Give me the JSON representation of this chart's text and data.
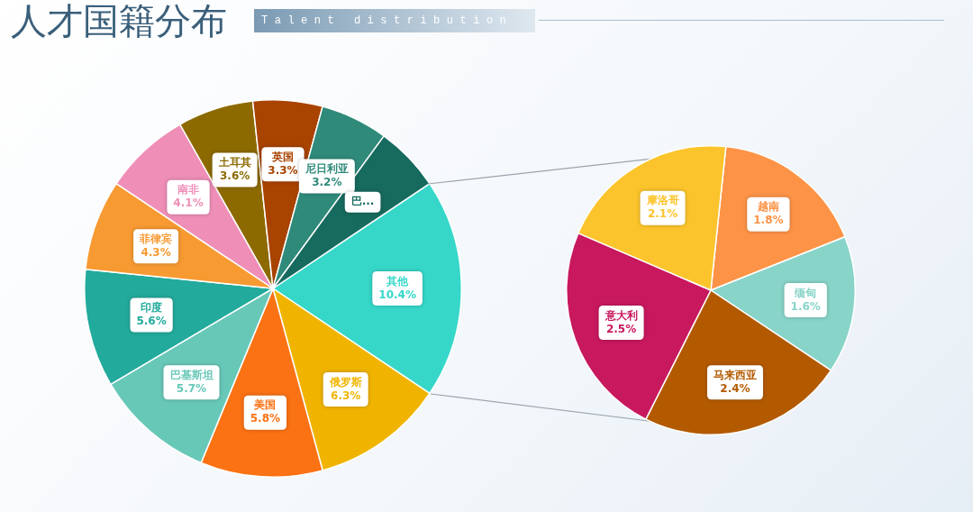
{
  "chart_data": [
    {
      "type": "pie",
      "title": "人才国籍分布",
      "subtitle": "Talent distribution",
      "categories": [
        "其他",
        "俄罗斯",
        "美国",
        "巴基斯坦",
        "印度",
        "菲律宾",
        "南非",
        "土耳其",
        "英国",
        "尼日利亚",
        "巴..."
      ],
      "values": [
        10.4,
        6.3,
        5.8,
        5.7,
        5.6,
        4.3,
        4.1,
        3.6,
        3.3,
        3.2,
        3.1
      ],
      "value_labels": [
        "10.4%",
        "6.3%",
        "5.8%",
        "5.7%",
        "5.6%",
        "4.3%",
        "4.1%",
        "3.6%",
        "3.3%",
        "3.2%",
        null
      ],
      "colors": [
        "#36d7c9",
        "#f0b400",
        "#fa7214",
        "#68c8b8",
        "#22aa9c",
        "#f79a32",
        "#ef8fb8",
        "#8c6a00",
        "#a84300",
        "#2f8a7a",
        "#176a5e"
      ],
      "legend": false
    },
    {
      "type": "pie",
      "categories": [
        "越南",
        "缅甸",
        "马来西亚",
        "意大利",
        "摩洛哥"
      ],
      "values": [
        1.8,
        1.6,
        2.4,
        2.5,
        2.1
      ],
      "value_labels": [
        "1.8%",
        "1.6%",
        "2.4%",
        "2.5%",
        "2.1%"
      ],
      "colors": [
        "#fd9346",
        "#88d4c8",
        "#b35a00",
        "#c8185e",
        "#fcc42c"
      ],
      "legend": false
    }
  ]
}
